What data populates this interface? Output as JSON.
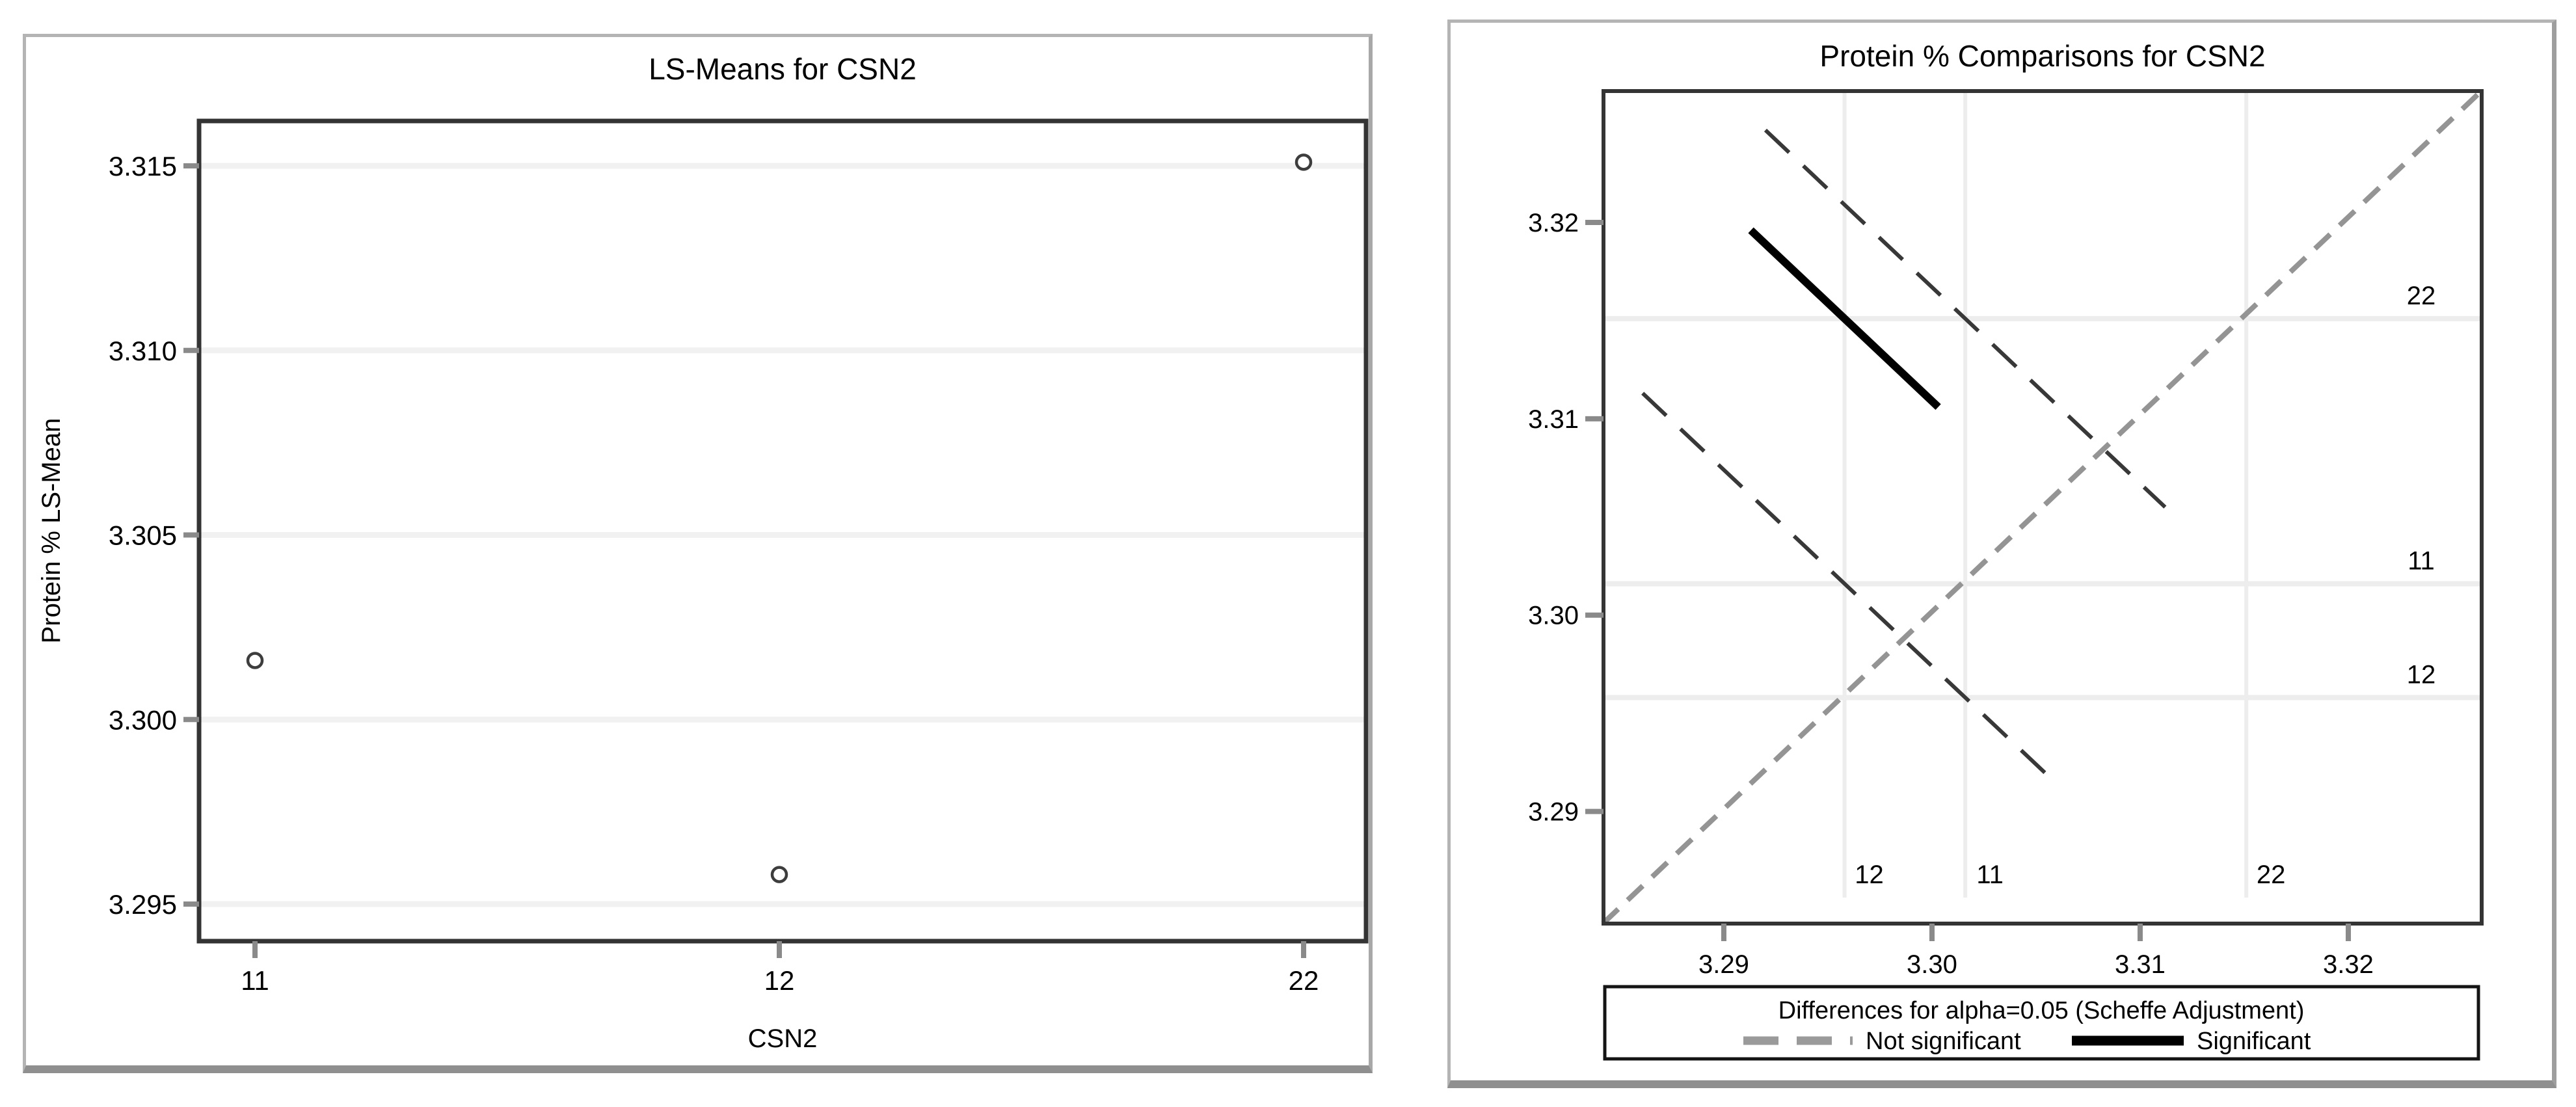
{
  "panels": {
    "left": {
      "title": "LS-Means for CSN2",
      "xlabel": "CSN2",
      "ylabel": "Protein % LS-Mean"
    },
    "right": {
      "title": "Protein % Comparisons for CSN2"
    }
  },
  "legend": {
    "title": "Differences for alpha=0.05 (Scheffe Adjustment)",
    "items": [
      {
        "label": "Not significant",
        "style": "dashed",
        "color": "#9a9a9a"
      },
      {
        "label": "Significant",
        "style": "solid",
        "color": "#000000"
      }
    ]
  },
  "colors": {
    "frame": "#343434",
    "grid": "#f1f1f1",
    "mean_grid": "#ededed",
    "tick": "#8a8a8a",
    "reference": "#949494",
    "dashed_comparison": "#383838",
    "significant": "#000000",
    "marker": "#3d3d3d",
    "panel_border": "#b4b4b4",
    "panel_shadow": "#8f8f8f"
  },
  "chart_data": [
    {
      "type": "scatter",
      "title": "LS-Means for CSN2",
      "xlabel": "CSN2",
      "ylabel": "Protein % LS-Mean",
      "categories": [
        "11",
        "12",
        "22"
      ],
      "values": [
        3.3016,
        3.2958,
        3.3151
      ],
      "yticks": [
        "3.295",
        "3.300",
        "3.305",
        "3.310",
        "3.315"
      ],
      "ytick_values": [
        3.295,
        3.3,
        3.305,
        3.31,
        3.315
      ],
      "ylim": [
        3.2939,
        3.3162
      ],
      "grid": "horizontal",
      "marker": "open-circle",
      "legend_position": "none"
    },
    {
      "type": "line",
      "subtype": "diffogram",
      "title": "Protein % Comparisons for CSN2",
      "xticks": [
        "3.29",
        "3.30",
        "3.31",
        "3.32"
      ],
      "yticks": [
        "3.29",
        "3.30",
        "3.31",
        "3.32"
      ],
      "xtick_values": [
        3.29,
        3.3,
        3.31,
        3.32
      ],
      "ytick_values": [
        3.29,
        3.3,
        3.31,
        3.32
      ],
      "xlim": [
        3.2842,
        3.3264
      ],
      "ylim": [
        3.2843,
        3.3267
      ],
      "levels": [
        {
          "label": "11",
          "mean": 3.3016
        },
        {
          "label": "12",
          "mean": 3.2958
        },
        {
          "label": "22",
          "mean": 3.3151
        }
      ],
      "reference_line": {
        "from": [
          3.2842,
          3.2843
        ],
        "to": [
          3.3264,
          3.3267
        ],
        "style": "dashed",
        "color": "#949494"
      },
      "series": [
        {
          "name": "11 vs 22",
          "significant": false,
          "style": "dashed",
          "x": [
            3.292,
            3.3112
          ],
          "y": [
            3.3247,
            3.3055
          ]
        },
        {
          "name": "12 vs 22",
          "significant": true,
          "style": "solid",
          "x": [
            3.2913,
            3.3003
          ],
          "y": [
            3.3196,
            3.3106
          ]
        },
        {
          "name": "12 vs 11",
          "significant": false,
          "style": "dashed",
          "x": [
            3.2861,
            3.3055
          ],
          "y": [
            3.3113,
            3.2919
          ]
        }
      ],
      "legend_title": "Differences for alpha=0.05 (Scheffe Adjustment)",
      "legend_entries": [
        "Not significant",
        "Significant"
      ]
    }
  ]
}
